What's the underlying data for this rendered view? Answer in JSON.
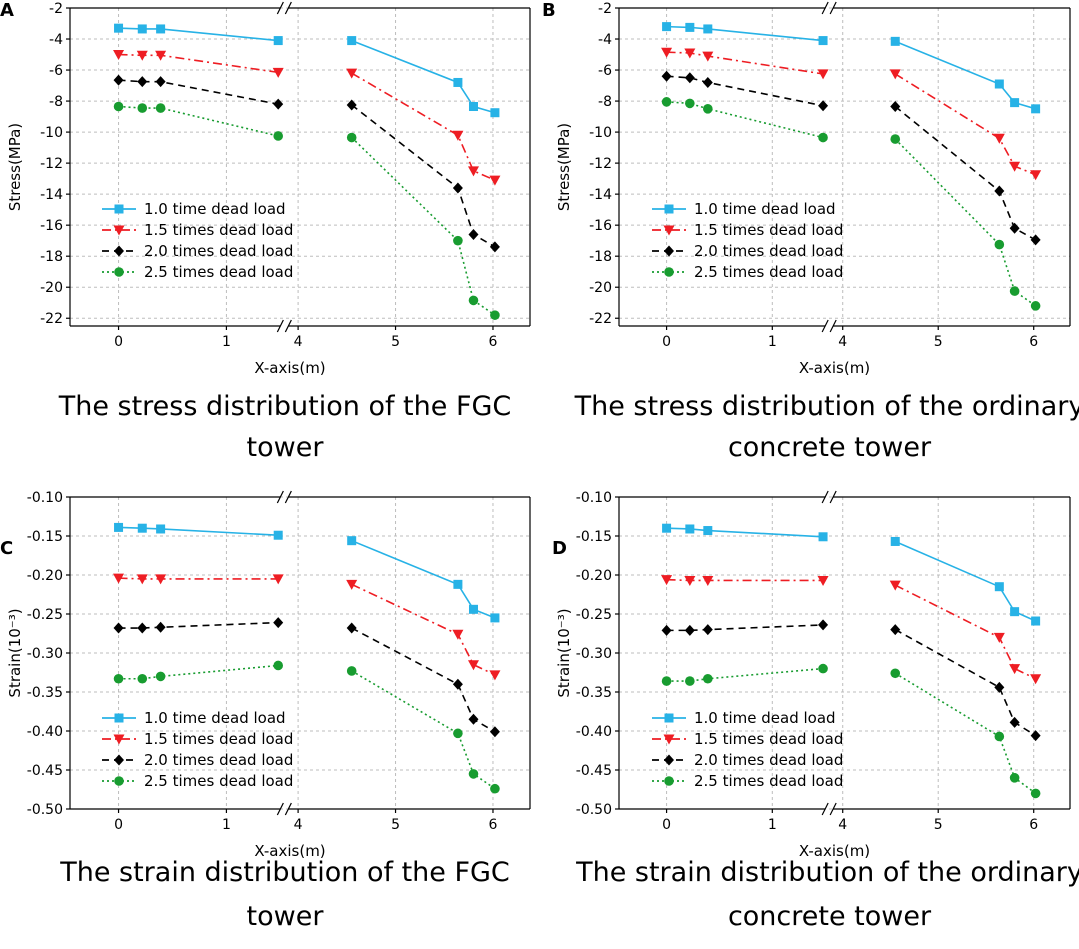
{
  "figure": {
    "legend_labels": [
      "1.0 time dead load",
      "1.5 times dead load",
      "2.0 times dead load",
      "2.5 times dead load"
    ],
    "series_colors": [
      "#27b2e6",
      "#ee1d23",
      "#000000",
      "#189c30"
    ],
    "marker_icons": [
      "square-marker-icon",
      "down-triangle-marker-icon",
      "diamond-marker-icon",
      "circle-marker-icon"
    ],
    "line_styles": [
      "solid",
      "dash-dot",
      "dashed",
      "dotted"
    ]
  },
  "chart_data": [
    {
      "panel": "A",
      "type": "line",
      "xlabel": "X-axis(m)",
      "ylabel": "Stress(MPa)",
      "caption": [
        "The stress distribution of the FGC",
        "tower"
      ],
      "x": [
        0,
        0.22,
        0.39,
        1.48,
        4.55,
        5.64,
        5.8,
        6.02
      ],
      "x_broken_between": [
        1.5,
        4.5
      ],
      "xticks": [
        "0",
        "1",
        "4",
        "5",
        "6"
      ],
      "ylim": [
        -22.5,
        -2
      ],
      "yticks": [
        "-2",
        "-4",
        "-6",
        "-8",
        "-10",
        "-12",
        "-14",
        "-16",
        "-18",
        "-20",
        "-22"
      ],
      "series": [
        {
          "name": "1.0 time dead load",
          "values": [
            -3.3,
            -3.35,
            -3.35,
            -4.1,
            -4.1,
            -6.8,
            -8.35,
            -8.75
          ]
        },
        {
          "name": "1.5 times dead load",
          "values": [
            -5.0,
            -5.05,
            -5.05,
            -6.15,
            -6.2,
            -10.2,
            -12.5,
            -13.1
          ]
        },
        {
          "name": "2.0 times dead load",
          "values": [
            -6.65,
            -6.75,
            -6.75,
            -8.2,
            -8.25,
            -13.6,
            -16.6,
            -17.4
          ]
        },
        {
          "name": "2.5 times dead load",
          "values": [
            -8.35,
            -8.45,
            -8.45,
            -10.25,
            -10.35,
            -17.0,
            -20.85,
            -21.8
          ]
        }
      ]
    },
    {
      "panel": "B",
      "type": "line",
      "xlabel": "X-axis(m)",
      "ylabel": "Stress(MPa)",
      "caption": [
        "The stress distribution of the ordinary",
        "concrete tower"
      ],
      "x": [
        0,
        0.22,
        0.39,
        1.48,
        4.55,
        5.64,
        5.8,
        6.02
      ],
      "x_broken_between": [
        1.5,
        4.5
      ],
      "xticks": [
        "0",
        "1",
        "4",
        "5",
        "6"
      ],
      "ylim": [
        -22.5,
        -2
      ],
      "yticks": [
        "-2",
        "-4",
        "-6",
        "-8",
        "-10",
        "-12",
        "-14",
        "-16",
        "-18",
        "-20",
        "-22"
      ],
      "series": [
        {
          "name": "1.0 time dead load",
          "values": [
            -3.2,
            -3.25,
            -3.35,
            -4.1,
            -4.15,
            -6.9,
            -8.1,
            -8.5
          ]
        },
        {
          "name": "1.5 times dead load",
          "values": [
            -4.85,
            -4.9,
            -5.1,
            -6.25,
            -6.25,
            -10.4,
            -12.2,
            -12.75
          ]
        },
        {
          "name": "2.0 times dead load",
          "values": [
            -6.4,
            -6.5,
            -6.8,
            -8.3,
            -8.35,
            -13.8,
            -16.2,
            -16.95
          ]
        },
        {
          "name": "2.5 times dead load",
          "values": [
            -8.05,
            -8.15,
            -8.5,
            -10.35,
            -10.45,
            -17.25,
            -20.25,
            -21.2
          ]
        }
      ]
    },
    {
      "panel": "C",
      "type": "line",
      "xlabel": "X-axis(m)",
      "ylabel": "Strain(10⁻³)",
      "caption": [
        "The strain distribution of the FGC",
        "tower"
      ],
      "x": [
        0,
        0.22,
        0.39,
        1.48,
        4.55,
        5.64,
        5.8,
        6.02
      ],
      "x_broken_between": [
        1.5,
        4.5
      ],
      "xticks": [
        "0",
        "1",
        "4",
        "5",
        "6"
      ],
      "ylim": [
        -0.5,
        -0.1
      ],
      "yticks": [
        "-0.10",
        "-0.15",
        "-0.20",
        "-0.25",
        "-0.30",
        "-0.35",
        "-0.40",
        "-0.45",
        "-0.50"
      ],
      "series": [
        {
          "name": "1.0 time dead load",
          "values": [
            -0.139,
            -0.14,
            -0.141,
            -0.149,
            -0.156,
            -0.212,
            -0.244,
            -0.255
          ]
        },
        {
          "name": "1.5 times dead load",
          "values": [
            -0.204,
            -0.205,
            -0.205,
            -0.205,
            -0.212,
            -0.276,
            -0.315,
            -0.328
          ]
        },
        {
          "name": "2.0 times dead load",
          "values": [
            -0.268,
            -0.268,
            -0.267,
            -0.261,
            -0.268,
            -0.34,
            -0.385,
            -0.401
          ]
        },
        {
          "name": "2.5 times dead load",
          "values": [
            -0.333,
            -0.333,
            -0.33,
            -0.316,
            -0.323,
            -0.403,
            -0.455,
            -0.474
          ]
        }
      ]
    },
    {
      "panel": "D",
      "type": "line",
      "xlabel": "X-axis(m)",
      "ylabel": "Strain(10⁻³)",
      "caption": [
        "The strain distribution of the ordinary",
        "concrete tower"
      ],
      "x": [
        0,
        0.22,
        0.39,
        1.48,
        4.55,
        5.64,
        5.8,
        6.02
      ],
      "x_broken_between": [
        1.5,
        4.5
      ],
      "xticks": [
        "0",
        "1",
        "4",
        "5",
        "6"
      ],
      "ylim": [
        -0.5,
        -0.1
      ],
      "yticks": [
        "-0.10",
        "-0.15",
        "-0.20",
        "-0.25",
        "-0.30",
        "-0.35",
        "-0.40",
        "-0.45",
        "-0.50"
      ],
      "series": [
        {
          "name": "1.0 time dead load",
          "values": [
            -0.14,
            -0.141,
            -0.143,
            -0.151,
            -0.157,
            -0.215,
            -0.247,
            -0.259
          ]
        },
        {
          "name": "1.5 times dead load",
          "values": [
            -0.206,
            -0.207,
            -0.207,
            -0.207,
            -0.213,
            -0.28,
            -0.32,
            -0.333
          ]
        },
        {
          "name": "2.0 times dead load",
          "values": [
            -0.271,
            -0.271,
            -0.27,
            -0.264,
            -0.27,
            -0.344,
            -0.389,
            -0.406
          ]
        },
        {
          "name": "2.5 times dead load",
          "values": [
            -0.336,
            -0.336,
            -0.333,
            -0.32,
            -0.326,
            -0.407,
            -0.46,
            -0.48
          ]
        }
      ]
    }
  ]
}
